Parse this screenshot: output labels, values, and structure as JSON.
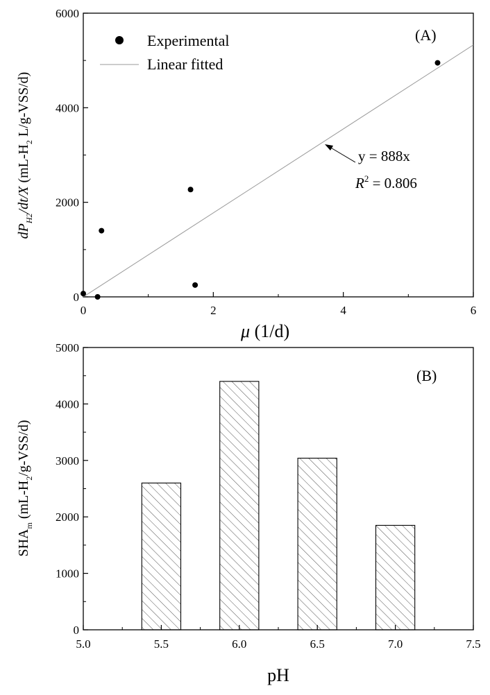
{
  "chart_data": [
    {
      "type": "scatter",
      "panel_label": "(A)",
      "xlabel": "μ (1/d)",
      "ylabel": "dP_H2/dt/X (mL-H2 L/g-VSS/d)",
      "xlim": [
        0,
        6
      ],
      "ylim": [
        0,
        6000
      ],
      "x_ticks": [
        "0",
        "2",
        "4",
        "6"
      ],
      "y_ticks": [
        "0",
        "2000",
        "4000",
        "6000"
      ],
      "legend": {
        "experimental": "Experimental",
        "fitted": "Linear fitted",
        "placement": "top-left"
      },
      "series": [
        {
          "name": "Experimental",
          "points": [
            {
              "x": 0.0,
              "y": 70
            },
            {
              "x": 0.22,
              "y": 0
            },
            {
              "x": 0.28,
              "y": 1400
            },
            {
              "x": 1.65,
              "y": 2270
            },
            {
              "x": 1.72,
              "y": 250
            },
            {
              "x": 5.45,
              "y": 4950
            }
          ]
        },
        {
          "name": "Linear fitted",
          "slope": 888,
          "intercept": 0
        }
      ],
      "annotation": {
        "equation": "y = 888x",
        "r2_prefix": "R",
        "r2_sup": "2",
        "r2_value": " = 0.806"
      }
    },
    {
      "type": "bar",
      "panel_label": "(B)",
      "xlabel": "pH",
      "ylabel": "SHAm (mL-H2/g-VSS/d)",
      "xlim": [
        5.0,
        7.5
      ],
      "ylim": [
        0,
        5000
      ],
      "x_ticks": [
        "5.0",
        "5.5",
        "6.0",
        "6.5",
        "7.0",
        "7.5"
      ],
      "y_ticks": [
        "0",
        "1000",
        "2000",
        "3000",
        "4000",
        "5000"
      ],
      "categories": [
        5.5,
        6.0,
        6.5,
        7.0
      ],
      "values": [
        2600,
        4400,
        3040,
        1850
      ],
      "bar_width": 0.25,
      "fill": "hatched"
    }
  ]
}
